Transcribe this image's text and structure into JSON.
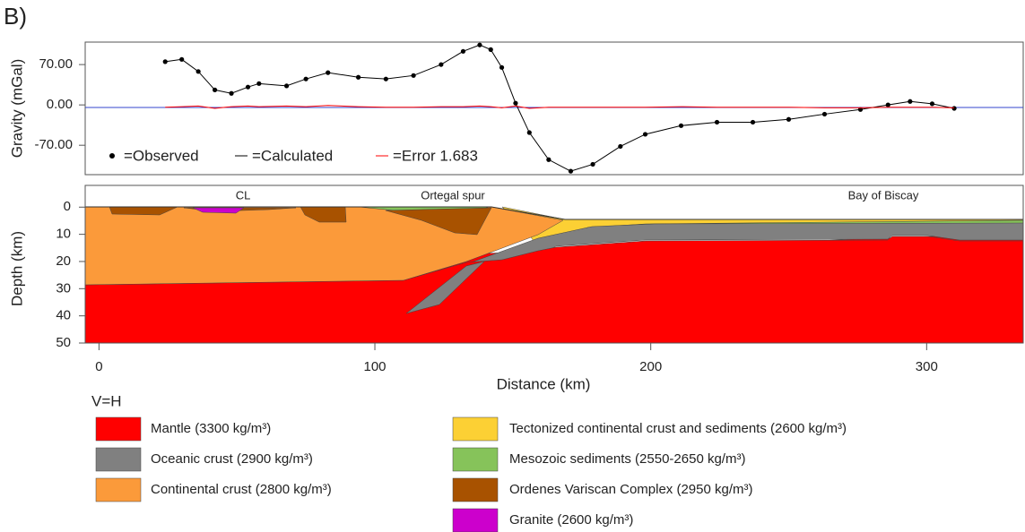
{
  "panel_label": "B)",
  "chart_data": [
    {
      "type": "line",
      "ylabel": "Gravity (mGal)",
      "x": [
        24,
        30,
        36,
        42,
        48,
        54,
        58,
        68,
        75,
        83,
        94,
        104,
        114,
        124,
        132,
        138,
        142,
        146,
        151,
        156,
        163,
        171,
        179,
        189,
        198,
        211,
        224,
        237,
        250,
        263,
        276,
        286,
        294,
        302,
        310
      ],
      "series": [
        {
          "name": "=Observed",
          "color": "#000000",
          "marker": "dot",
          "values": [
            75,
            79,
            58,
            26,
            20,
            31,
            37,
            33,
            45,
            56,
            48,
            45,
            51,
            70,
            93,
            104,
            96,
            65,
            3,
            -48,
            -95,
            -115,
            -103,
            -72,
            -51,
            -36,
            -30,
            -30,
            -25,
            -16,
            -8,
            0,
            6,
            2,
            -6
          ]
        },
        {
          "name": "=Calculated",
          "color": "#000000",
          "values": [
            75,
            79,
            58,
            26,
            20,
            31,
            37,
            33,
            45,
            56,
            48,
            45,
            51,
            70,
            93,
            104,
            96,
            65,
            3,
            -48,
            -95,
            -115,
            -103,
            -72,
            -51,
            -36,
            -30,
            -30,
            -25,
            -16,
            -8,
            0,
            6,
            2,
            -6
          ]
        },
        {
          "name": "=Error 1.683",
          "color": "#ff0000",
          "values": [
            -4,
            -3,
            -2,
            -6,
            -3,
            -2,
            -3,
            -2,
            -3,
            -1,
            -3,
            -4,
            -4,
            -3,
            -3,
            -2,
            -3,
            -5,
            -2,
            -6,
            -4,
            -4,
            -4,
            -4,
            -4,
            -3,
            -4,
            -4,
            -4,
            -5,
            -5,
            -4,
            -4,
            -4,
            -5
          ]
        }
      ],
      "xlim": [
        -5,
        335
      ],
      "ylim": [
        -121,
        109
      ],
      "yticks": [
        {
          "value": 70,
          "label": "70.00"
        },
        {
          "value": 0,
          "label": "0.00"
        },
        {
          "value": -70,
          "label": "-70.00"
        }
      ]
    },
    {
      "type": "section",
      "xlabel": "Distance (km)",
      "ylabel": "Depth (km)",
      "annotations": [
        "CL",
        "Ortegal spur",
        "Bay of Biscay"
      ],
      "xlim": [
        -5,
        335
      ],
      "xticks": [
        0,
        100,
        200,
        300
      ],
      "ylim": [
        -8,
        50
      ],
      "y_inverted": true,
      "yticks": [
        0,
        10,
        20,
        30,
        40,
        50
      ]
    }
  ],
  "scale_note": "V=H",
  "legend": [
    {
      "label": "Mantle (3300 kg/m³)",
      "color": "#ff0000"
    },
    {
      "label": "Oceanic crust (2900 kg/m³)",
      "color": "#808080"
    },
    {
      "label": "Continental crust (2800 kg/m³)",
      "color": "#fb9a3a"
    },
    {
      "label": "Tectonized continental crust and sediments (2600 kg/m³)",
      "color": "#fcd034"
    },
    {
      "label": "Mesozoic sediments (2550-2650 kg/m³)",
      "color": "#86c35a"
    },
    {
      "label": "Ordenes Variscan Complex (2950 kg/m³)",
      "color": "#a85200"
    },
    {
      "label": "Granite (2600 kg/m³)",
      "color": "#cc00cc"
    }
  ]
}
